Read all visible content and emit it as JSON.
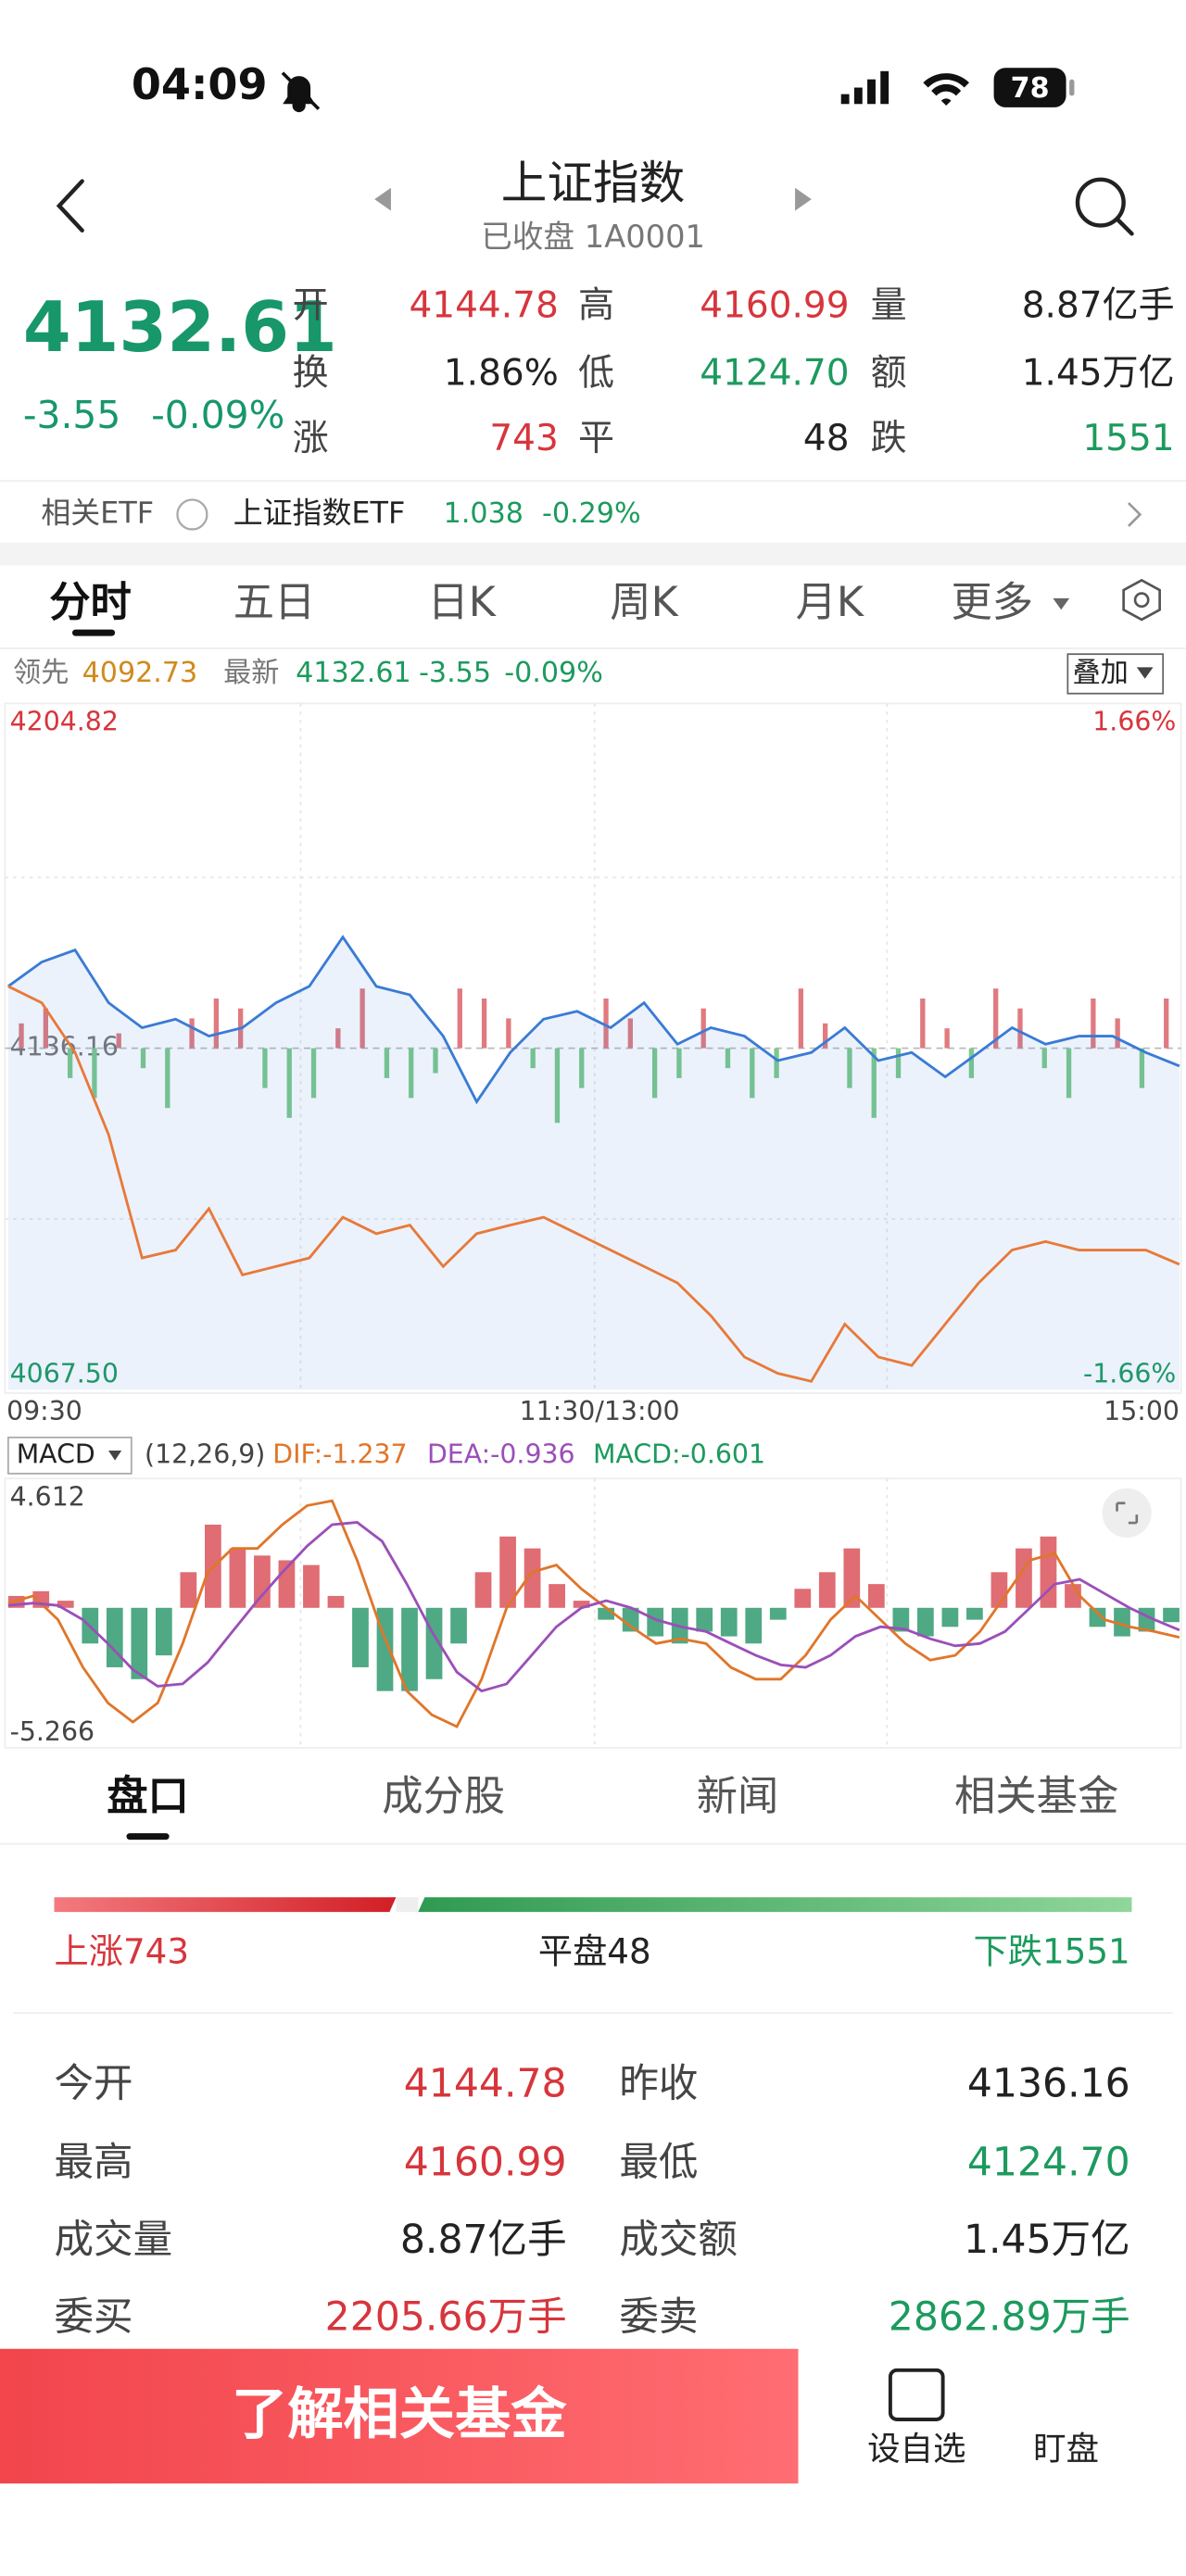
{
  "status": {
    "time": "04:09",
    "battery": "78"
  },
  "header": {
    "title": "上证指数",
    "subtitle": "已收盘 1A0001"
  },
  "quote": {
    "price": "4132.61",
    "change": "-3.55",
    "pct": "-0.09%",
    "stats": [
      [
        {
          "label": "开",
          "value": "4144.78",
          "color": "up"
        },
        {
          "label": "高",
          "value": "4160.99",
          "color": "up"
        },
        {
          "label": "量",
          "value": "8.87亿手",
          "color": "flat"
        }
      ],
      [
        {
          "label": "换",
          "value": "1.86%",
          "color": "flat"
        },
        {
          "label": "低",
          "value": "4124.70",
          "color": "down"
        },
        {
          "label": "额",
          "value": "1.45万亿",
          "color": "flat"
        }
      ],
      [
        {
          "label": "涨",
          "value": "743",
          "color": "up"
        },
        {
          "label": "平",
          "value": "48",
          "color": "flat"
        },
        {
          "label": "跌",
          "value": "1551",
          "color": "down"
        }
      ]
    ]
  },
  "etf": {
    "label": "相关ETF",
    "name": "上证指数ETF",
    "price": "1.038",
    "pct": "-0.29%"
  },
  "tabs": [
    "分时",
    "五日",
    "日K",
    "周K",
    "月K",
    "更多"
  ],
  "legend": {
    "lead_label": "领先",
    "lead_value": "4092.73",
    "last_label": "最新",
    "last_value": "4132.61",
    "last_change": "-3.55",
    "last_pct": "-0.09%",
    "overlay": "叠加"
  },
  "chart_data": [
    {
      "type": "line",
      "ylim": [
        4067.5,
        4204.82
      ],
      "yticks": [
        {
          "value": 4204.82,
          "label": "4204.82"
        },
        {
          "value": 4136.16,
          "label": "4136.16"
        },
        {
          "value": 4067.5,
          "label": "4067.50"
        }
      ],
      "pct_labels": [
        "1.66%",
        "-1.66%"
      ],
      "x_labels": [
        "09:30",
        "11:30/13:00",
        "15:00"
      ],
      "series": [
        {
          "name": "最新",
          "color": "#3a7bd5",
          "values": [
            4148.6,
            4153.5,
            4155.9,
            4145.3,
            4140.3,
            4142,
            4138.6,
            4140.3,
            4145.3,
            4148.6,
            4158.5,
            4148.6,
            4146.9,
            4138.6,
            4125.4,
            4135.3,
            4142,
            4143.6,
            4140.3,
            4145.3,
            4137,
            4140.3,
            4138.6,
            4133.7,
            4135.3,
            4140.3,
            4133.7,
            4135.3,
            4130.4,
            4135.3,
            4140.3,
            4137,
            4138.6,
            4138.6,
            4135.3,
            4132.61
          ]
        },
        {
          "name": "领先",
          "color": "#e8793a",
          "values": [
            4148.6,
            4145.3,
            4135.3,
            4118.8,
            4094,
            4095.6,
            4103.9,
            4090.6,
            4092.3,
            4094,
            4102.2,
            4098.9,
            4100.6,
            4092.3,
            4098.9,
            4100.6,
            4102.2,
            4098.9,
            4095.6,
            4092.3,
            4089,
            4082.4,
            4074.1,
            4070.8,
            4069.2,
            4080.7,
            4074.1,
            4072.4,
            4080.7,
            4089,
            4095.6,
            4097.3,
            4095.6,
            4095.6,
            4095.6,
            4092.73
          ]
        }
      ],
      "bars": [
        5,
        8,
        -6,
        -10,
        3,
        -4,
        -12,
        6,
        10,
        8,
        -8,
        -14,
        -10,
        4,
        12,
        -6,
        -10,
        -5,
        12,
        10,
        6,
        -4,
        -15,
        -8,
        10,
        6,
        -10,
        -6,
        8,
        -4,
        -10,
        -6,
        12,
        5,
        -8,
        -14,
        -6,
        10,
        4,
        -6,
        12,
        8,
        -4,
        -10,
        10,
        6,
        -8,
        10
      ]
    },
    {
      "type": "macd",
      "title": "MACD",
      "params": "(12,26,9)",
      "dif_label": "DIF:-1.237",
      "dea_label": "DEA:-0.936",
      "macd_label": "MACD:-0.601",
      "ylim": [
        -5.266,
        4.612
      ],
      "yticks": [
        {
          "value": 4.612,
          "label": "4.612"
        },
        {
          "value": -5.266,
          "label": "-5.266"
        }
      ],
      "histogram": [
        0.5,
        0.7,
        0.3,
        -1.5,
        -2.5,
        -3,
        -2,
        1.5,
        3.5,
        2.5,
        2.2,
        2,
        1.8,
        0.5,
        -2.5,
        -3.5,
        -3.5,
        -3,
        -1.5,
        1.5,
        3,
        2.5,
        1,
        0.3,
        -0.5,
        -1,
        -1.2,
        -1.5,
        -1,
        -1.2,
        -1.5,
        -0.5,
        0.8,
        1.5,
        2.5,
        1,
        -1,
        -1.2,
        -0.8,
        -0.5,
        1.5,
        2.5,
        3,
        1,
        -0.8,
        -1.2,
        -1,
        -0.601
      ],
      "series": [
        {
          "name": "DIF",
          "color": "#e0762a",
          "values": [
            0.2,
            0.5,
            -0.5,
            -2.5,
            -4,
            -4.8,
            -4,
            -1.5,
            1.5,
            2.5,
            2.5,
            3.5,
            4.3,
            4.5,
            2,
            -1,
            -3.5,
            -4.5,
            -5,
            -3,
            0,
            1.5,
            1.8,
            0.8,
            0,
            -0.8,
            -1.5,
            -1.3,
            -1.5,
            -2.5,
            -3,
            -3,
            -2,
            -0.5,
            0.5,
            -0.5,
            -1.5,
            -2.2,
            -2,
            -1,
            0.5,
            2,
            2.3,
            0.5,
            -0.5,
            -0.8,
            -1,
            -1.237
          ]
        },
        {
          "name": "DEA",
          "color": "#9b4fb8",
          "values": [
            0.1,
            0.2,
            0.1,
            -0.5,
            -1.5,
            -2.6,
            -3.3,
            -3.2,
            -2.3,
            -1,
            0.3,
            1.5,
            2.6,
            3.5,
            3.6,
            2.8,
            1,
            -1,
            -2.7,
            -3.5,
            -3.2,
            -2,
            -0.8,
            0,
            0.3,
            0,
            -0.5,
            -0.8,
            -1,
            -1.5,
            -2,
            -2.4,
            -2.5,
            -2,
            -1.2,
            -0.8,
            -0.9,
            -1.3,
            -1.6,
            -1.5,
            -1,
            0,
            1,
            1.2,
            0.6,
            0,
            -0.5,
            -0.936
          ]
        }
      ]
    }
  ],
  "detail_tabs": [
    "盘口",
    "成分股",
    "新闻",
    "相关基金"
  ],
  "breadth": {
    "up_label": "上涨",
    "up": 743,
    "flat_label": "平盘",
    "flat": 48,
    "down_label": "下跌",
    "down": 1551
  },
  "table": [
    [
      {
        "label": "今开",
        "value": "4144.78",
        "color": "up"
      },
      {
        "label": "昨收",
        "value": "4136.16",
        "color": "flat"
      }
    ],
    [
      {
        "label": "最高",
        "value": "4160.99",
        "color": "up"
      },
      {
        "label": "最低",
        "value": "4124.70",
        "color": "down"
      }
    ],
    [
      {
        "label": "成交量",
        "value": "8.87亿手",
        "color": "flat"
      },
      {
        "label": "成交额",
        "value": "1.45万亿",
        "color": "flat"
      }
    ],
    [
      {
        "label": "委买",
        "value": "2205.66万手",
        "color": "up"
      },
      {
        "label": "委卖",
        "value": "2862.89万手",
        "color": "down"
      }
    ]
  ],
  "footer": {
    "button": "了解相关基金",
    "watch": "设自选",
    "monitor": "盯盘"
  }
}
